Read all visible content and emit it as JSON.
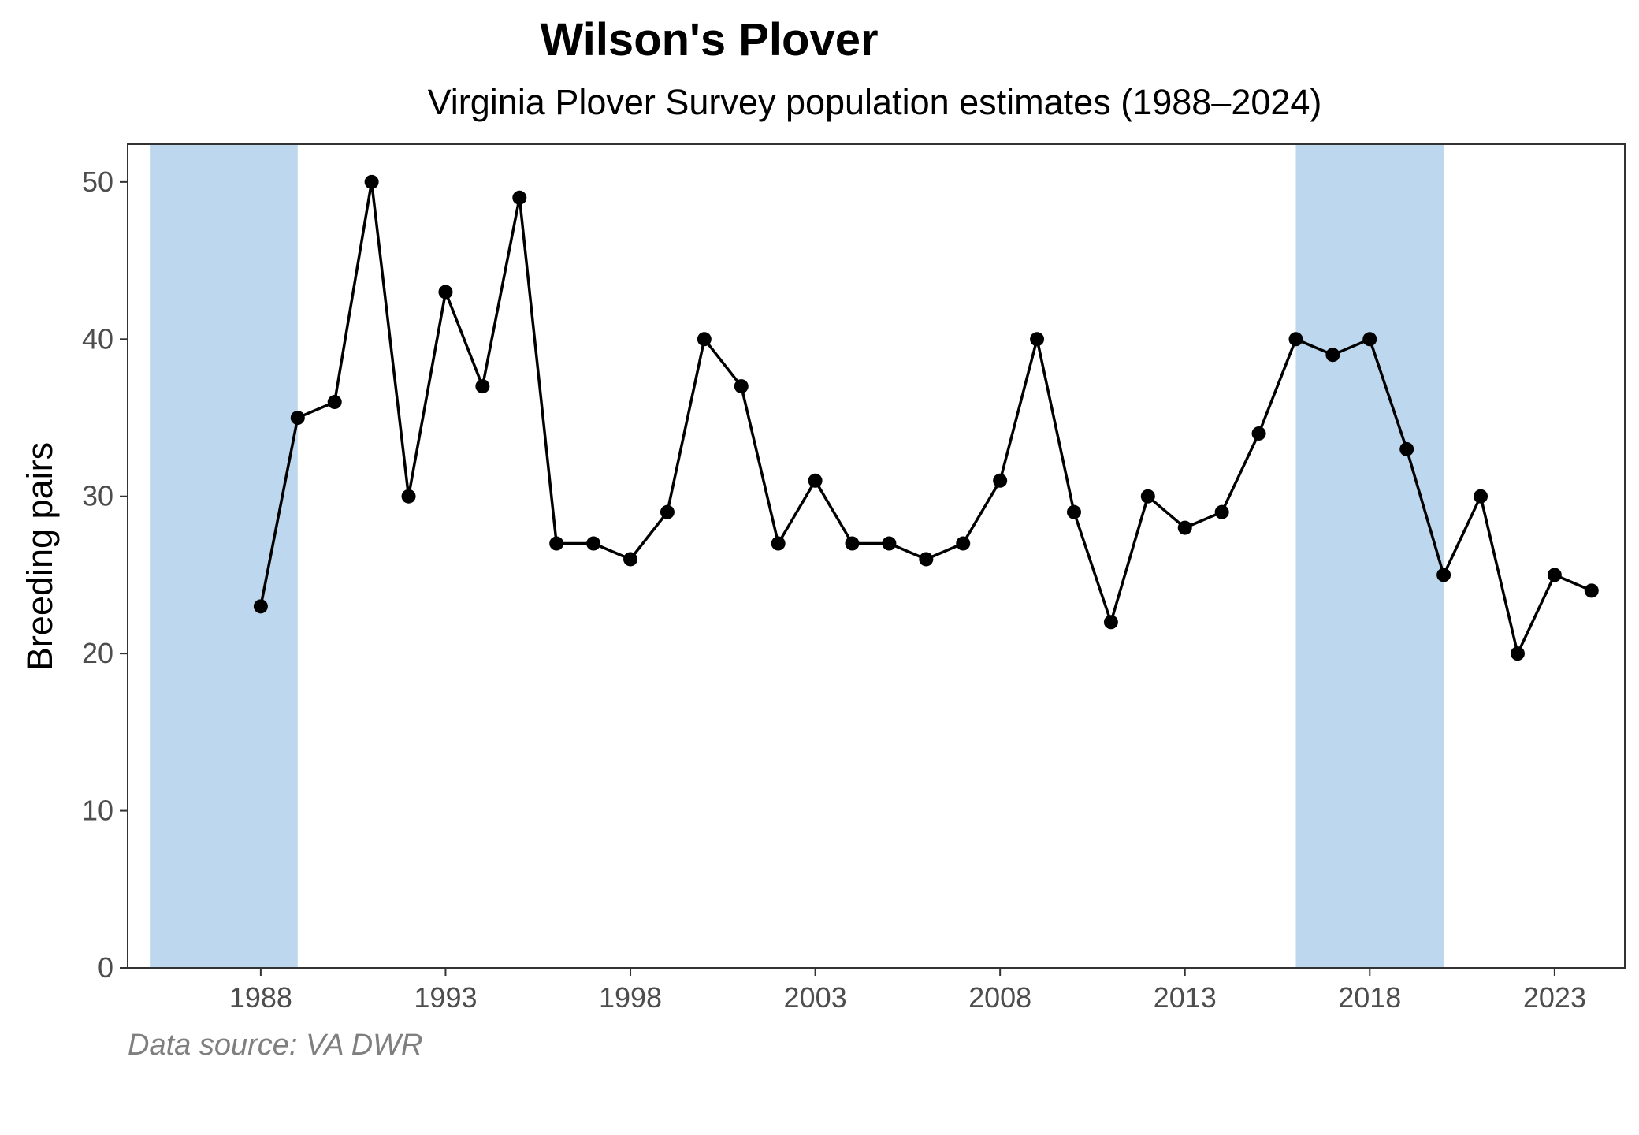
{
  "chart_data": {
    "type": "line",
    "title": "Wilson's Plover",
    "subtitle": "Virginia Plover Survey population estimates (1988–2024)",
    "xlabel": "",
    "ylabel": "Breeding pairs",
    "caption": "Data source: VA DWR",
    "xlim": [
      1984.4,
      2024.9
    ],
    "ylim": [
      0,
      52.4
    ],
    "x_ticks": [
      1988,
      1993,
      1998,
      2003,
      2008,
      2013,
      2018,
      2023
    ],
    "x_tick_labels": [
      "1988",
      "1993",
      "1998",
      "2003",
      "2008",
      "2013",
      "2018",
      "2023"
    ],
    "y_ticks": [
      0,
      10,
      20,
      30,
      40,
      50
    ],
    "y_tick_labels": [
      "0",
      "10",
      "20",
      "30",
      "40",
      "50"
    ],
    "grid": false,
    "legend": "none",
    "highlight_bands": [
      {
        "x_start": 1985,
        "x_end": 1989,
        "color": "#bdd7ee"
      },
      {
        "x_start": 2016,
        "x_end": 2020,
        "color": "#bdd7ee"
      }
    ],
    "series": [
      {
        "color": "#000000",
        "x": [
          1988,
          1989,
          1990,
          1991,
          1992,
          1993,
          1994,
          1995,
          1996,
          1997,
          1998,
          1999,
          2000,
          2001,
          2002,
          2003,
          2004,
          2005,
          2006,
          2007,
          2008,
          2009,
          2010,
          2011,
          2012,
          2013,
          2014,
          2015,
          2016,
          2017,
          2018,
          2019,
          2020,
          2021,
          2022,
          2023,
          2024
        ],
        "y": [
          23,
          35,
          36,
          50,
          30,
          43,
          37,
          49,
          27,
          27,
          26,
          29,
          40,
          37,
          27,
          31,
          27,
          27,
          26,
          27,
          31,
          40,
          29,
          22,
          30,
          28,
          29,
          34,
          40,
          39,
          40,
          33,
          25,
          30,
          20,
          25,
          24
        ]
      }
    ]
  }
}
